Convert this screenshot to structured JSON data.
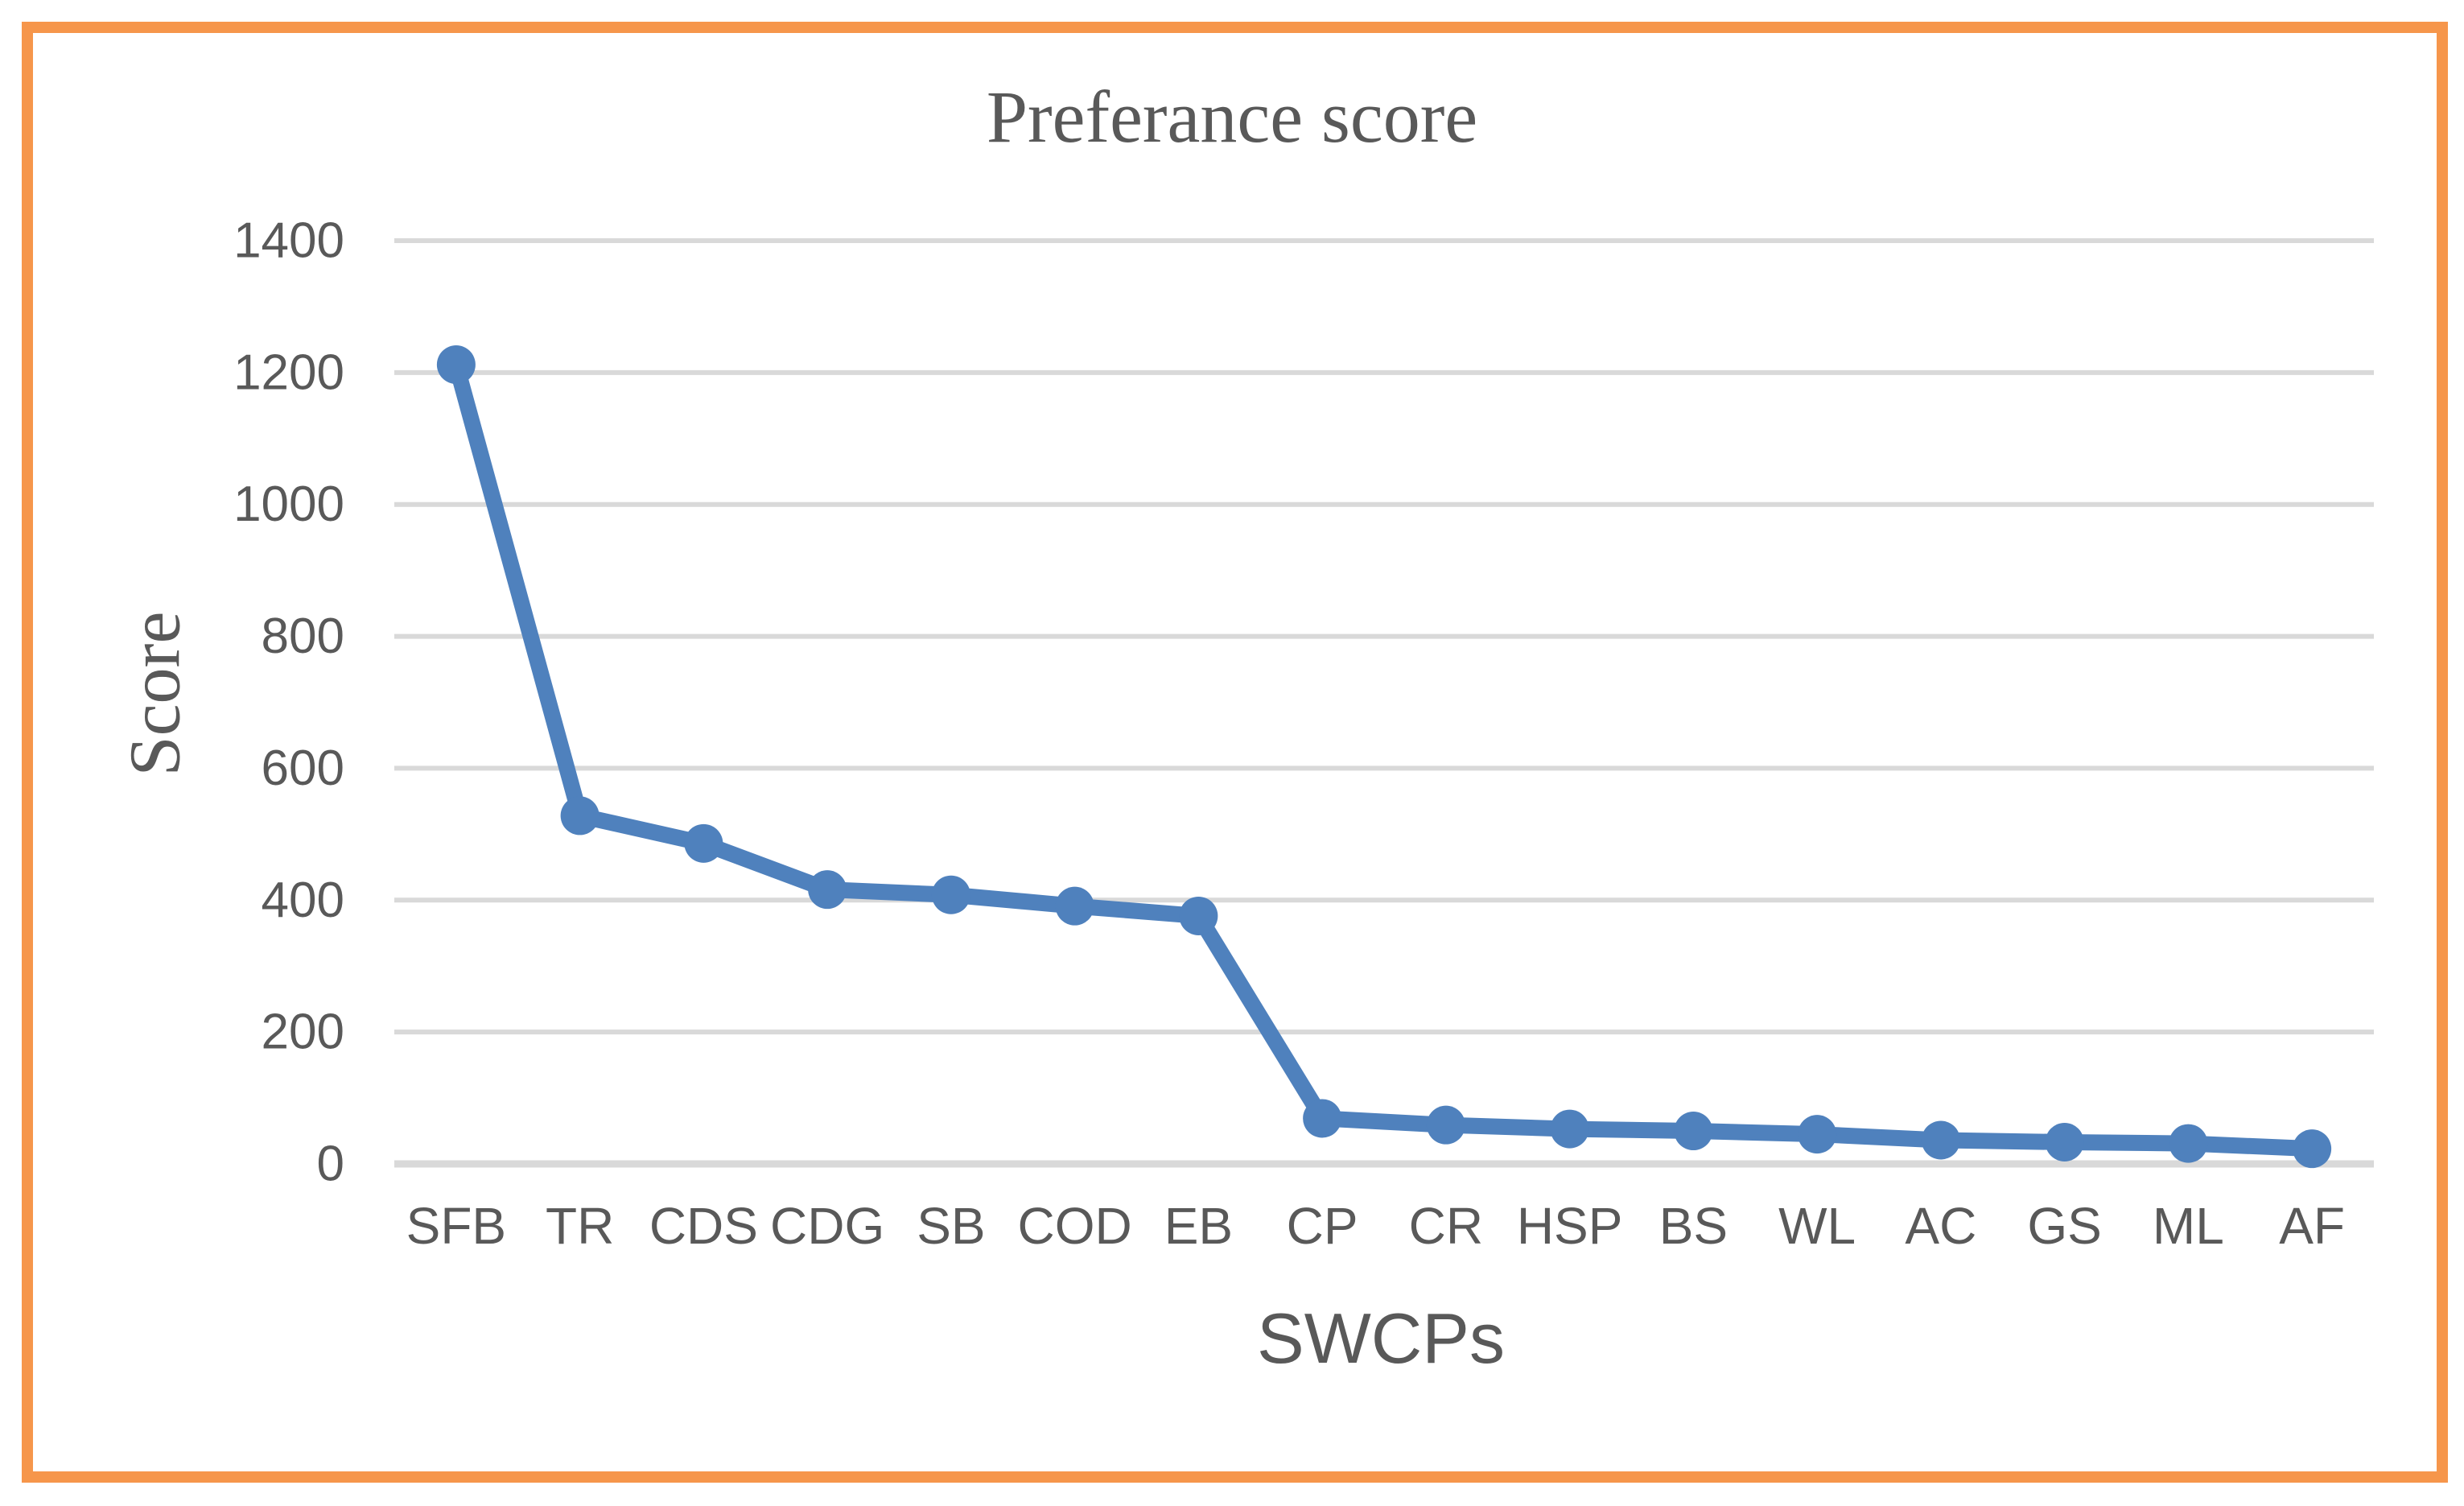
{
  "frame": {
    "border_color": "#F6964B"
  },
  "chart_data": {
    "type": "line",
    "title": "Preferance score",
    "xlabel": "SWCPs",
    "ylabel": "Score",
    "categories": [
      "SFB",
      "TR",
      "CDS",
      "CDG",
      "SB",
      "COD",
      "EB",
      "CP",
      "CR",
      "HSP",
      "BS",
      "WL",
      "AC",
      "GS",
      "ML",
      "AF"
    ],
    "values": [
      1212,
      528,
      486,
      416,
      408,
      391,
      376,
      69,
      59,
      53,
      50,
      45,
      36,
      33,
      31,
      23
    ],
    "ylim": [
      0,
      1400
    ],
    "yticks": [
      0,
      200,
      400,
      600,
      800,
      1000,
      1200,
      1400
    ],
    "grid": true,
    "legend": "none",
    "colors": {
      "line": "#4F81BD",
      "marker": "#4F81BD",
      "gridline": "#D9D9D9",
      "text": "#595959",
      "frame": "#F6964B"
    }
  }
}
